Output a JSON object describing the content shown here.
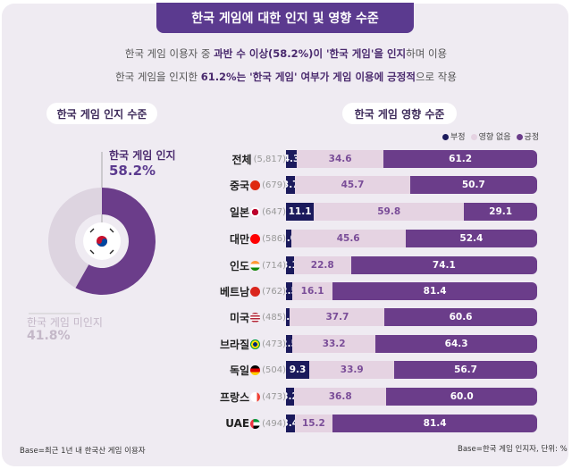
{
  "title": "한국 게임에 대한 인지 및 영향 수준",
  "subtitle": {
    "line1": [
      {
        "t": "한국 게임 이용자 중 ",
        "b": false
      },
      {
        "t": "과반 수 이상(58.2%)이 '한국 게임'을 인지",
        "b": true
      },
      {
        "t": "하며 이용",
        "b": false
      }
    ],
    "line2": [
      {
        "t": "한국 게임을 인지한 ",
        "b": false
      },
      {
        "t": "61.2%는 '한국 게임' 여부가 게임 이용에 긍정적",
        "b": true
      },
      {
        "t": "으로 작용",
        "b": false
      }
    ]
  },
  "colors": {
    "title": "#5b3a8f",
    "negative": "#1b1a5c",
    "neutral": "#e5d3e2",
    "positive": "#6b3d8a",
    "unaware": "#ddd4e0"
  },
  "chart_data": [
    {
      "type": "pie",
      "title": "한국 게임 인지 수준",
      "slices": [
        {
          "label": "한국 게임 인지",
          "value": 58.2,
          "display": "58.2%"
        },
        {
          "label": "한국 게임 미인지",
          "value": 41.8,
          "display": "41.8%"
        }
      ],
      "note": "Base=최근 1년 내 한국산 게임 이용자",
      "center_icon": "korea-flag-icon"
    },
    {
      "type": "bar",
      "stacked": true,
      "orientation": "horizontal",
      "title": "한국 게임 영향 수준",
      "legend_position": "top-right",
      "series_names": [
        "부정",
        "영향 없음",
        "긍정"
      ],
      "categories": [
        {
          "label": "전체",
          "n": "(5,817)",
          "flag": ""
        },
        {
          "label": "중국",
          "n": "(679)",
          "flag": "china"
        },
        {
          "label": "일본",
          "n": "(647)",
          "flag": "japan"
        },
        {
          "label": "대만",
          "n": "(586)",
          "flag": "taiwan"
        },
        {
          "label": "인도",
          "n": "(714)",
          "flag": "india"
        },
        {
          "label": "베트남",
          "n": "(762)",
          "flag": "vietnam"
        },
        {
          "label": "미국",
          "n": "(485)",
          "flag": "usa"
        },
        {
          "label": "브라질",
          "n": "(473)",
          "flag": "brazil"
        },
        {
          "label": "독일",
          "n": "(504)",
          "flag": "germany"
        },
        {
          "label": "프랑스",
          "n": "(473)",
          "flag": "france"
        },
        {
          "label": "UAE",
          "n": "(494)",
          "flag": "uae"
        }
      ],
      "series": [
        {
          "name": "부정",
          "values": [
            4.3,
            3.7,
            11.1,
            2.0,
            3.1,
            2.5,
            1.6,
            2.5,
            9.3,
            3.2,
            3.4
          ]
        },
        {
          "name": "영향 없음",
          "values": [
            34.6,
            45.7,
            59.8,
            45.6,
            22.8,
            16.1,
            37.7,
            33.2,
            33.9,
            36.8,
            15.2
          ]
        },
        {
          "name": "긍정",
          "values": [
            61.2,
            50.7,
            29.1,
            52.4,
            74.1,
            81.4,
            60.6,
            64.3,
            56.7,
            60.0,
            81.4
          ]
        }
      ],
      "unit": "%",
      "note": "Base=한국 게임 인지자, 단위: %",
      "xlim": [
        0,
        100
      ]
    }
  ]
}
